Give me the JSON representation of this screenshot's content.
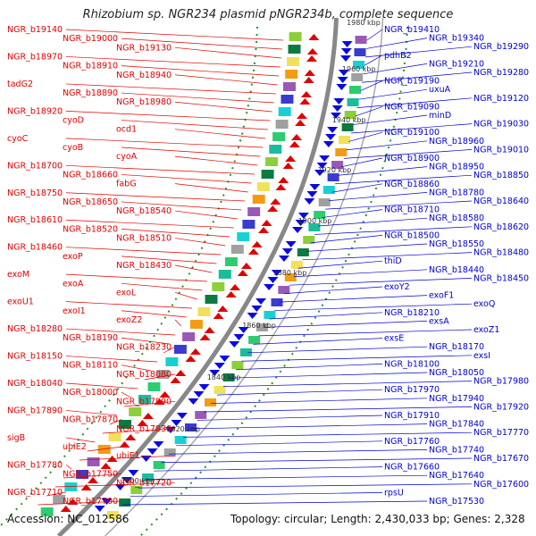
{
  "title": "Rhizobium sp. NGR234 plasmid pNGR234b, complete sequence",
  "accession": "Accession: NC_012586",
  "topology": "Topology: circular; Length: 2,430,033 bp; Genes: 2,328",
  "colors": {
    "left_labels": "#e00000",
    "right_labels": "#0000d0",
    "axis": "#888888",
    "dots": "#2a8f2a"
  },
  "kbp_ticks": [
    "1980 kbp",
    "1960 kbp",
    "1940 kbp",
    "1920 kbp",
    "1900 kbp",
    "1880 kbp",
    "1860 kbp",
    "1840 kbp",
    "1820 kbp",
    "1800 kbp"
  ],
  "left_labels": [
    "NGR_b19140",
    "NGR_b19000",
    "NGR_b19130",
    "NGR_b18970",
    "NGR_b18910",
    "NGR_b18940",
    "tadG2",
    "NGR_b18890",
    "NGR_b18980",
    "NGR_b18920",
    "cyoD",
    "ocd1",
    "cyoC",
    "cyoB",
    "cyoA",
    "NGR_b18700",
    "NGR_b18660",
    "fabG",
    "NGR_b18750",
    "NGR_b18650",
    "NGR_b18540",
    "NGR_b18610",
    "NGR_b18520",
    "NGR_b18510",
    "NGR_b18460",
    "exoP",
    "NGR_b18430",
    "exoM",
    "exoA",
    "exoL",
    "exoU1",
    "exoI1",
    "exoZ2",
    "NGR_b18280",
    "NGR_b18190",
    "NGR_b18230",
    "NGR_b18150",
    "NGR_b18110",
    "NGR_b18080",
    "NGR_b18040",
    "NGR_b18000",
    "NGR_b17990",
    "NGR_b17890",
    "NGR_b17870",
    "NGR_b17830",
    "sigB",
    "ubiE2",
    "ubiE1",
    "NGR_b17780",
    "NGR_b17750",
    "NGR_b17720",
    "NGR_b17710",
    "NGR_b17700"
  ],
  "right_labels": [
    "NGR_b19410",
    "NGR_b19340",
    "NGR_b19290",
    "pdhB2",
    "NGR_b19210",
    "NGR_b19280",
    "NGR_b19190",
    "uxuA",
    "NGR_b19120",
    "NGR_b19090",
    "minD",
    "NGR_b19030",
    "NGR_b19100",
    "NGR_b18960",
    "NGR_b19010",
    "NGR_b18900",
    "NGR_b18950",
    "NGR_b18850",
    "NGR_b18860",
    "NGR_b18780",
    "NGR_b18640",
    "NGR_b18710",
    "NGR_b18580",
    "NGR_b18620",
    "NGR_b18500",
    "NGR_b18550",
    "NGR_b18480",
    "thiD",
    "NGR_b18440",
    "NGR_b18450",
    "exoY2",
    "exoF1",
    "exoQ",
    "NGR_b18210",
    "exsA",
    "exoZ1",
    "exsE",
    "NGR_b18170",
    "exsI",
    "NGR_b18100",
    "NGR_b18050",
    "NGR_b17980",
    "NGR_b17970",
    "NGR_b17940",
    "NGR_b17920",
    "NGR_b17910",
    "NGR_b17840",
    "NGR_b17770",
    "NGR_b17760",
    "NGR_b17740",
    "NGR_b17670",
    "NGR_b17660",
    "NGR_b17640",
    "NGR_b17600",
    "rpsU",
    "NGR_b17530"
  ]
}
